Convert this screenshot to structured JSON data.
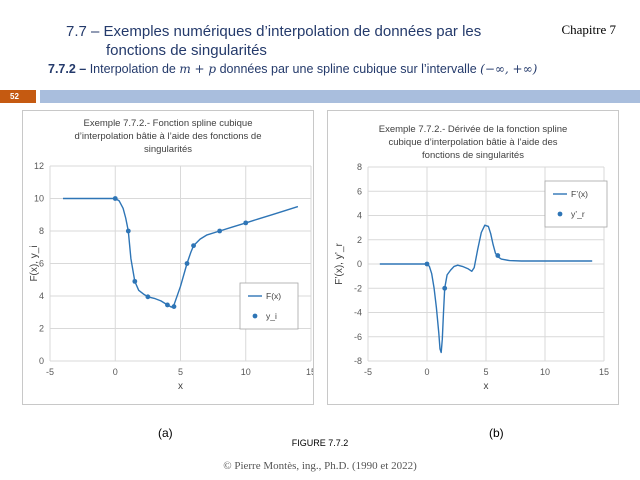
{
  "header": {
    "title_line1": "7.7 – Exemples numériques d’interpolation de données par les",
    "title_line2": "fonctions de singularités",
    "subtitle_prefix": "7.7.2 –",
    "subtitle_text_a": " Interpolation de ",
    "subtitle_math_a": "m + p",
    "subtitle_text_b": " données par une spline cubique sur l’intervalle ",
    "subtitle_math_b": "(−∞, +∞)",
    "chapter": "Chapitre 7",
    "page_number": "52"
  },
  "figure": {
    "caption_a": "(a)",
    "caption_b": "(b)",
    "label": "FIGURE 7.7.2",
    "footer": "© Pierre Montès, ing., Ph.D. (1990 et 2022)"
  },
  "colors": {
    "line": "#2e75b6",
    "accent_band": "#c55a11",
    "blue_band": "#a9bedd"
  },
  "chart_data": [
    {
      "type": "line",
      "title_lines": [
        "Exemple 7.7.2.- Fonction spline cubique",
        "d’interpolation bâtie à l’aide des fonctions de",
        "singularités"
      ],
      "xlabel": "x",
      "ylabel": "F(x),  y_i",
      "xlim": [
        -5,
        15
      ],
      "ylim": [
        0,
        12
      ],
      "xticks": [
        -5,
        0,
        5,
        10,
        15
      ],
      "yticks": [
        0,
        2,
        4,
        6,
        8,
        10,
        12
      ],
      "grid": true,
      "legend": "lower-right",
      "series": [
        {
          "name": "F(x)",
          "kind": "line",
          "x": [
            -4,
            -1,
            0,
            0.3,
            0.6,
            0.8,
            1,
            1.2,
            1.5,
            1.8,
            2.2,
            2.5,
            3,
            3.5,
            4,
            4.3,
            4.5,
            5,
            5.5,
            5.8,
            6,
            6.5,
            7,
            8,
            9,
            10,
            11,
            12,
            13,
            14
          ],
          "y": [
            10,
            10,
            10,
            9.85,
            9.4,
            8.8,
            8,
            6.3,
            4.9,
            4.35,
            4.1,
            3.95,
            3.85,
            3.7,
            3.45,
            3.32,
            3.45,
            4.6,
            6,
            6.7,
            7.1,
            7.5,
            7.75,
            8,
            8.25,
            8.5,
            8.75,
            9,
            9.25,
            9.5
          ]
        },
        {
          "name": "y_i",
          "kind": "points",
          "x": [
            0,
            1,
            1.5,
            2.5,
            4,
            4.5,
            5.5,
            6,
            8,
            10
          ],
          "y": [
            10,
            8,
            4.9,
            3.95,
            3.45,
            3.35,
            6,
            7.1,
            8,
            8.5
          ]
        }
      ]
    },
    {
      "type": "line",
      "title_lines": [
        "Exemple 7.7.2.- Dérivée de la fonction spline",
        "cubique d’interpolation bâtie à l’aide des",
        "fonctions de singularités"
      ],
      "xlabel": "x",
      "ylabel": "F’(x), y’_r",
      "xlim": [
        -5,
        15
      ],
      "ylim": [
        -8,
        8
      ],
      "xticks": [
        -5,
        0,
        5,
        10,
        15
      ],
      "yticks": [
        -8,
        -6,
        -4,
        -2,
        0,
        2,
        4,
        6,
        8
      ],
      "grid": true,
      "legend": "upper-right",
      "series": [
        {
          "name": "F’(x)",
          "kind": "line",
          "x": [
            -4,
            -1,
            0,
            0.2,
            0.4,
            0.6,
            0.8,
            1,
            1.1,
            1.2,
            1.3,
            1.4,
            1.5,
            1.7,
            2,
            2.3,
            2.6,
            3,
            3.5,
            3.8,
            4,
            4.3,
            4.6,
            4.9,
            5.2,
            5.4,
            5.6,
            5.8,
            6,
            6.3,
            7,
            8,
            10,
            14
          ],
          "y": [
            0,
            0,
            0,
            -0.2,
            -0.8,
            -2,
            -3.6,
            -5.7,
            -7,
            -7.3,
            -6.2,
            -4,
            -2,
            -0.9,
            -0.5,
            -0.2,
            -0.1,
            -0.2,
            -0.4,
            -0.6,
            -0.3,
            1.2,
            2.6,
            3.2,
            3.1,
            2.5,
            1.6,
            0.9,
            0.6,
            0.4,
            0.28,
            0.25,
            0.25,
            0.25
          ]
        },
        {
          "name": "y’_r",
          "kind": "points",
          "x": [
            0,
            1.5,
            6
          ],
          "y": [
            0,
            -2,
            0.7
          ]
        }
      ]
    }
  ]
}
